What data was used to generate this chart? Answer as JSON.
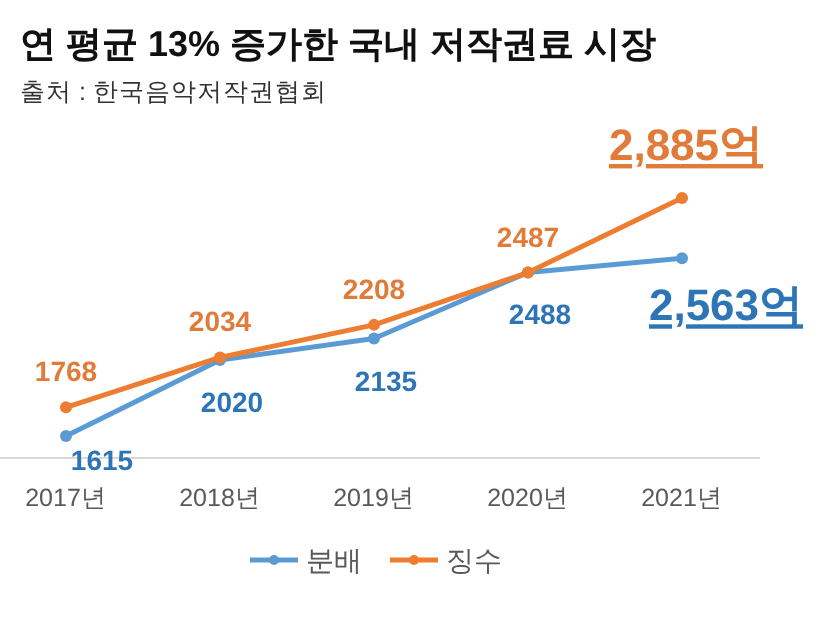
{
  "chart_data": {
    "type": "line",
    "title": "연 평균 13% 증가한 국내 저작권료 시장",
    "subtitle": "출처 : 한국음악저작권협회",
    "categories": [
      "2017년",
      "2018년",
      "2019년",
      "2020년",
      "2021년"
    ],
    "series": [
      {
        "name": "분배",
        "color": "#5b9bd5",
        "values": [
          1615,
          2020,
          2135,
          2488,
          2563
        ],
        "value_labels": [
          "1615",
          "2020",
          "2135",
          "2488",
          "2,563억"
        ]
      },
      {
        "name": "징수",
        "color": "#ed7d31",
        "values": [
          1768,
          2034,
          2208,
          2487,
          2885
        ],
        "value_labels": [
          "1768",
          "2034",
          "2208",
          "2487",
          "2,885억"
        ]
      }
    ],
    "legend": "bottom",
    "marker": "circle",
    "line_style": "solid"
  }
}
